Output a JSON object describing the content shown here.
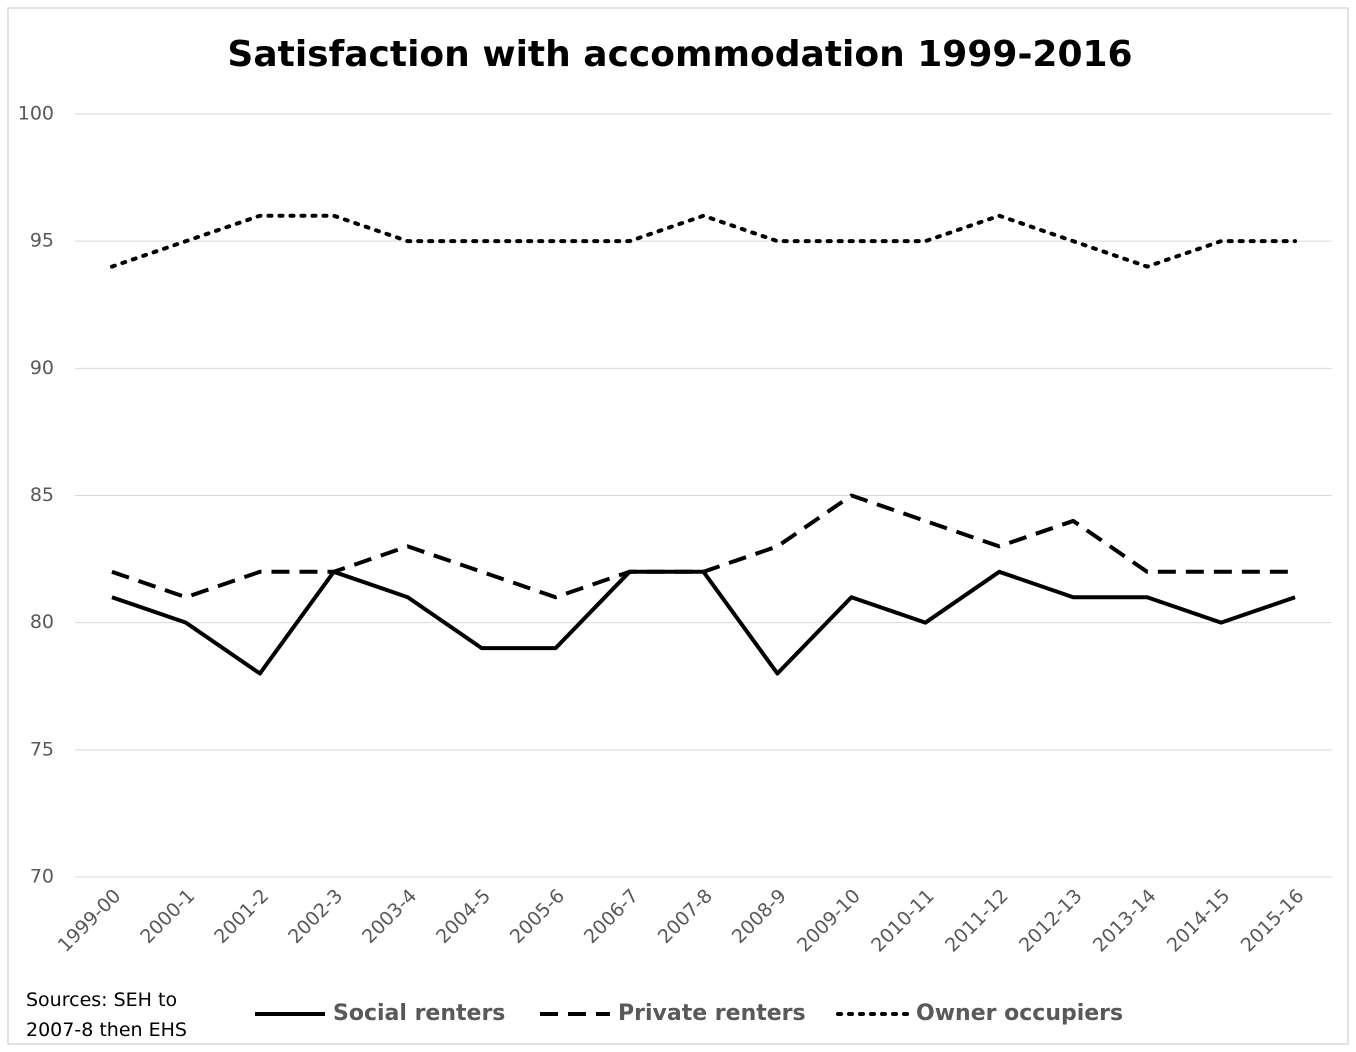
{
  "chart_data": {
    "type": "line",
    "title": "Satisfaction with accommodation 1999-2016",
    "annotation": "Sources: SEH to 2007-8 then EHS",
    "categories": [
      "1999-00",
      "2000-1",
      "2001-2",
      "2002-3",
      "2003-4",
      "2004-5",
      "2005-6",
      "2006-7",
      "2007-8",
      "2008-9",
      "2009-10",
      "2010-11",
      "2011-12",
      "2012-13",
      "2013-14",
      "2014-15",
      "2015-16"
    ],
    "series": [
      {
        "name": "Social renters",
        "color": "#000000",
        "line_style": "solid",
        "values": [
          81,
          80,
          78,
          82,
          81,
          79,
          79,
          82,
          82,
          78,
          81,
          80,
          82,
          81,
          81,
          80,
          81
        ]
      },
      {
        "name": "Private renters",
        "color": "#000000",
        "line_style": "dashed",
        "values": [
          82,
          81,
          82,
          82,
          83,
          82,
          81,
          82,
          82,
          83,
          85,
          84,
          83,
          84,
          82,
          82,
          82
        ]
      },
      {
        "name": "Owner occupiers",
        "color": "#000000",
        "line_style": "dotted",
        "values": [
          94,
          95,
          96,
          96,
          95,
          95,
          95,
          95,
          96,
          95,
          95,
          95,
          96,
          95,
          94,
          95,
          95
        ]
      }
    ],
    "ylim": [
      70,
      100
    ],
    "yticks": [
      70,
      75,
      80,
      85,
      90,
      95,
      100
    ],
    "grid": true,
    "legend": "bottom"
  }
}
